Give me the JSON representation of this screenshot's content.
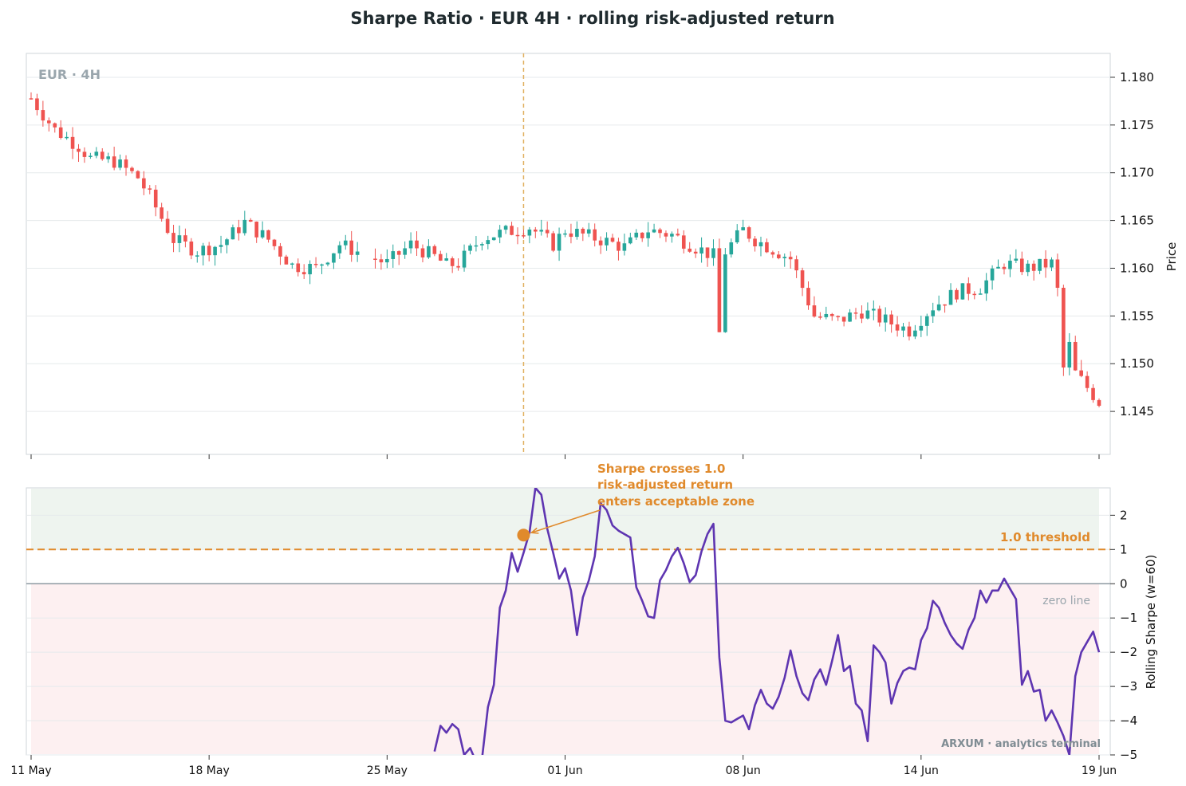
{
  "title": "Sharpe Ratio · EUR 4H · rolling risk-adjusted return",
  "watermark": "ARXUM · analytics terminal",
  "colors": {
    "up": "#26a69a",
    "down": "#ef5350",
    "sharpe_line": "#5e35b1",
    "threshold": "#e08a2c",
    "zero": "#8e99a1",
    "positive_zone": "#eef4ef",
    "negative_zone": "#fdf0f1",
    "event_line": "#e0b060"
  },
  "chart_data": [
    {
      "type": "candlestick",
      "panel_label": "EUR · 4H",
      "ylabel": "Price",
      "ylim": [
        1.1405,
        1.1825
      ],
      "yticks": [
        "1.145",
        "1.150",
        "1.155",
        "1.160",
        "1.165",
        "1.170",
        "1.175",
        "1.180"
      ],
      "x_range": [
        0,
        180
      ],
      "xticks": [
        0,
        30,
        60,
        90,
        120,
        150,
        180
      ],
      "event_marker_x": 83,
      "grid": true,
      "anchors": [
        [
          0,
          1.1778
        ],
        [
          4,
          1.1745
        ],
        [
          8,
          1.1728
        ],
        [
          10,
          1.1715
        ],
        [
          14,
          1.1712
        ],
        [
          18,
          1.1695
        ],
        [
          20,
          1.1675
        ],
        [
          24,
          1.163
        ],
        [
          28,
          1.1618
        ],
        [
          32,
          1.1625
        ],
        [
          36,
          1.1648
        ],
        [
          40,
          1.163
        ],
        [
          44,
          1.1603
        ],
        [
          48,
          1.16
        ],
        [
          52,
          1.1625
        ],
        [
          56,
          1.1615
        ],
        [
          60,
          1.1605
        ],
        [
          64,
          1.1625
        ],
        [
          68,
          1.1612
        ],
        [
          70,
          1.1603
        ],
        [
          72,
          1.1605
        ],
        [
          76,
          1.1632
        ],
        [
          80,
          1.1638
        ],
        [
          84,
          1.1643
        ],
        [
          88,
          1.1625
        ],
        [
          90,
          1.164
        ],
        [
          96,
          1.163
        ],
        [
          100,
          1.1622
        ],
        [
          104,
          1.164
        ],
        [
          108,
          1.1635
        ],
        [
          112,
          1.1622
        ],
        [
          116,
          1.161
        ],
        [
          120,
          1.164
        ],
        [
          122,
          1.163
        ],
        [
          128,
          1.161
        ],
        [
          132,
          1.155
        ],
        [
          136,
          1.1545
        ],
        [
          140,
          1.1555
        ],
        [
          144,
          1.1545
        ],
        [
          148,
          1.1535
        ],
        [
          152,
          1.156
        ],
        [
          156,
          1.1575
        ],
        [
          160,
          1.158
        ],
        [
          164,
          1.1605
        ],
        [
          168,
          1.16
        ],
        [
          172,
          1.1605
        ],
        [
          176,
          1.149
        ],
        [
          180,
          1.146
        ]
      ]
    },
    {
      "type": "line",
      "ylabel": "Rolling Sharpe (w=60)",
      "ylim": [
        -5,
        2.8
      ],
      "yticks": [
        "−5",
        "−4",
        "−3",
        "−2",
        "−1",
        "0",
        "1",
        "2"
      ],
      "x": [
        "11 May",
        "18 May",
        "25 May",
        "01 Jun",
        "08 Jun",
        "14 Jun",
        "19 Jun"
      ],
      "threshold": 1.0,
      "threshold_label": "1.0 threshold",
      "zero_label": "zero line",
      "annotation": {
        "text": [
          "Sharpe crosses 1.0",
          "risk-adjusted return",
          "enters acceptable zone"
        ],
        "point": [
          83,
          1.42
        ]
      },
      "series": [
        {
          "values": [
            [
              68,
              -4.9
            ],
            [
              69,
              -4.15
            ],
            [
              70,
              -4.35
            ],
            [
              71,
              -4.1
            ],
            [
              72,
              -4.25
            ],
            [
              73,
              -5.0
            ],
            [
              74,
              -4.8
            ],
            [
              75,
              -5.2
            ],
            [
              76,
              -5.1
            ],
            [
              77,
              -3.6
            ],
            [
              78,
              -2.95
            ],
            [
              79,
              -0.7
            ],
            [
              80,
              -0.2
            ],
            [
              81,
              0.9
            ],
            [
              82,
              0.35
            ],
            [
              83,
              0.9
            ],
            [
              84,
              1.5
            ],
            [
              85,
              2.8
            ],
            [
              86,
              2.6
            ],
            [
              87,
              1.6
            ],
            [
              88,
              0.9
            ],
            [
              89,
              0.15
            ],
            [
              90,
              0.45
            ],
            [
              91,
              -0.2
            ],
            [
              92,
              -1.5
            ],
            [
              93,
              -0.4
            ],
            [
              94,
              0.1
            ],
            [
              95,
              0.8
            ],
            [
              96,
              2.35
            ],
            [
              97,
              2.15
            ],
            [
              98,
              1.7
            ],
            [
              99,
              1.55
            ],
            [
              100,
              1.45
            ],
            [
              101,
              1.35
            ],
            [
              102,
              -0.1
            ],
            [
              103,
              -0.5
            ],
            [
              104,
              -0.95
            ],
            [
              105,
              -1.0
            ],
            [
              106,
              0.1
            ],
            [
              107,
              0.4
            ],
            [
              108,
              0.8
            ],
            [
              109,
              1.05
            ],
            [
              110,
              0.6
            ],
            [
              111,
              0.05
            ],
            [
              112,
              0.25
            ],
            [
              113,
              0.95
            ],
            [
              114,
              1.45
            ],
            [
              115,
              1.75
            ],
            [
              116,
              -2.15
            ],
            [
              117,
              -4.0
            ],
            [
              118,
              -4.05
            ],
            [
              119,
              -3.95
            ],
            [
              120,
              -3.85
            ],
            [
              121,
              -4.25
            ],
            [
              122,
              -3.55
            ],
            [
              123,
              -3.1
            ],
            [
              124,
              -3.5
            ],
            [
              125,
              -3.65
            ],
            [
              126,
              -3.3
            ],
            [
              127,
              -2.75
            ],
            [
              128,
              -1.95
            ],
            [
              129,
              -2.7
            ],
            [
              130,
              -3.2
            ],
            [
              131,
              -3.4
            ],
            [
              132,
              -2.8
            ],
            [
              133,
              -2.5
            ],
            [
              134,
              -2.95
            ],
            [
              135,
              -2.25
            ],
            [
              136,
              -1.5
            ],
            [
              137,
              -2.55
            ],
            [
              138,
              -2.4
            ],
            [
              139,
              -3.5
            ],
            [
              140,
              -3.7
            ],
            [
              141,
              -4.6
            ],
            [
              142,
              -1.8
            ],
            [
              143,
              -2.0
            ],
            [
              144,
              -2.3
            ],
            [
              145,
              -3.5
            ],
            [
              146,
              -2.9
            ],
            [
              147,
              -2.55
            ],
            [
              148,
              -2.45
            ],
            [
              149,
              -2.5
            ],
            [
              150,
              -1.65
            ],
            [
              151,
              -1.3
            ],
            [
              152,
              -0.5
            ],
            [
              153,
              -0.7
            ],
            [
              154,
              -1.15
            ],
            [
              155,
              -1.5
            ],
            [
              156,
              -1.75
            ],
            [
              157,
              -1.9
            ],
            [
              158,
              -1.35
            ],
            [
              159,
              -1.0
            ],
            [
              160,
              -0.2
            ],
            [
              161,
              -0.55
            ],
            [
              162,
              -0.2
            ],
            [
              163,
              -0.2
            ],
            [
              164,
              0.15
            ],
            [
              165,
              -0.15
            ],
            [
              166,
              -0.45
            ],
            [
              167,
              -2.95
            ],
            [
              168,
              -2.55
            ],
            [
              169,
              -3.15
            ],
            [
              170,
              -3.1
            ],
            [
              171,
              -4.0
            ],
            [
              172,
              -3.7
            ],
            [
              173,
              -4.05
            ],
            [
              174,
              -4.45
            ],
            [
              175,
              -5.0
            ],
            [
              176,
              -2.7
            ],
            [
              177,
              -2.0
            ],
            [
              178,
              -1.7
            ],
            [
              179,
              -1.4
            ],
            [
              180,
              -2.0
            ]
          ]
        }
      ]
    }
  ]
}
